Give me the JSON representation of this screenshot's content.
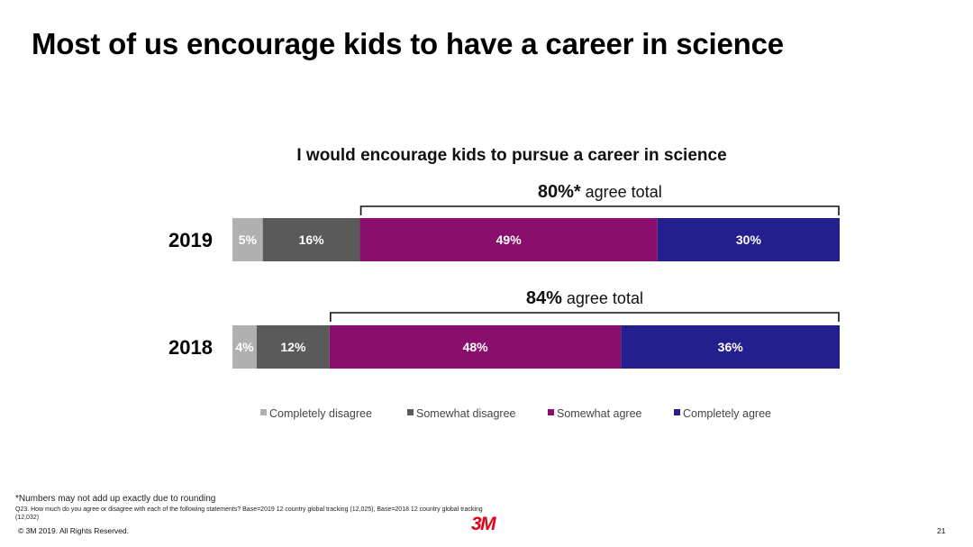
{
  "slide": {
    "title": "Most of us encourage kids to have a career in science",
    "footnote": "*Numbers may not add up exactly due to rounding",
    "question": "Q23. How much do you agree or disagree with each of the following statements? Base=2019 12 country global tracking (12,025), Base=2018 12 country global tracking (12,032)",
    "copyright": "© 3M 2019.   All Rights Reserved.",
    "logo": "3M",
    "page_number": "21"
  },
  "chart_data": {
    "type": "bar",
    "orientation": "horizontal",
    "stacked": true,
    "percent": true,
    "title": "I would encourage kids to pursue a career in science",
    "categories": [
      "2019",
      "2018"
    ],
    "series": [
      {
        "name": "Completely disagree",
        "color": "#b0b0b0",
        "values": [
          5,
          4
        ],
        "labels": [
          "5%",
          "4%"
        ]
      },
      {
        "name": "Somewhat disagree",
        "color": "#5a5a5a",
        "values": [
          16,
          12
        ],
        "labels": [
          "16%",
          "12%"
        ]
      },
      {
        "name": "Somewhat agree",
        "color": "#8a0e6e",
        "values": [
          49,
          48
        ],
        "labels": [
          "49%",
          "48%"
        ]
      },
      {
        "name": "Completely agree",
        "color": "#241f8f",
        "values": [
          30,
          36
        ],
        "labels": [
          "30%",
          "36%"
        ]
      }
    ],
    "annotations": [
      {
        "category": "2019",
        "value": "80%*",
        "text": " agree total"
      },
      {
        "category": "2018",
        "value": "84%",
        "text": " agree total"
      }
    ],
    "legend_position": "bottom",
    "grid": false
  }
}
